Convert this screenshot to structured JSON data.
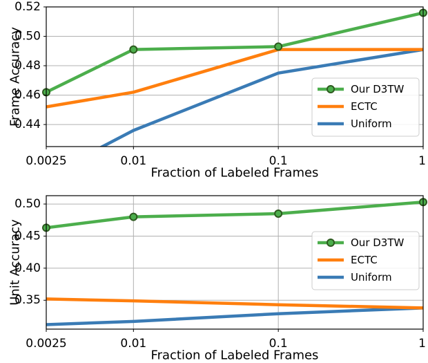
{
  "chart_data": [
    {
      "type": "line",
      "xlabel": "Fraction of Labeled Frames",
      "ylabel": "Frame Accuracy",
      "x_scale": "log",
      "x": [
        0.0025,
        0.01,
        0.1,
        1
      ],
      "x_tick_labels": [
        "0.0025",
        "0.01",
        "0.1",
        "1"
      ],
      "ylim": [
        0.425,
        0.52
      ],
      "y_ticks": [
        0.44,
        0.46,
        0.48,
        0.5,
        0.52
      ],
      "y_tick_labels": [
        "0.44",
        "0.46",
        "0.48",
        "0.50",
        "0.52"
      ],
      "grid": true,
      "legend_position": "lower-right",
      "series": [
        {
          "name": "Our D3TW",
          "values": [
            0.462,
            0.491,
            0.493,
            0.516
          ],
          "color": "#4cae4c",
          "marker": "circle"
        },
        {
          "name": "ECTC",
          "values": [
            0.452,
            0.462,
            0.491,
            0.491
          ],
          "color": "#ff7f0e"
        },
        {
          "name": "Uniform",
          "values": [
            0.405,
            0.436,
            0.475,
            0.491
          ],
          "color": "#3a7bb5"
        }
      ]
    },
    {
      "type": "line",
      "xlabel": "Fraction of Labeled Frames",
      "ylabel": "Unit Accuracy",
      "x_scale": "log",
      "x": [
        0.0025,
        0.01,
        0.1,
        1
      ],
      "x_tick_labels": [
        "0.0025",
        "0.01",
        "0.1",
        "1"
      ],
      "ylim": [
        0.305,
        0.513
      ],
      "y_ticks": [
        0.35,
        0.4,
        0.45,
        0.5
      ],
      "y_tick_labels": [
        "0.35",
        "0.40",
        "0.45",
        "0.50"
      ],
      "grid": true,
      "legend_position": "center-right",
      "series": [
        {
          "name": "Our D3TW",
          "values": [
            0.463,
            0.48,
            0.485,
            0.503
          ],
          "color": "#4cae4c",
          "marker": "circle"
        },
        {
          "name": "ECTC",
          "values": [
            0.352,
            0.349,
            0.343,
            0.338
          ],
          "color": "#ff7f0e"
        },
        {
          "name": "Uniform",
          "values": [
            0.312,
            0.317,
            0.329,
            0.338
          ],
          "color": "#3a7bb5"
        }
      ]
    }
  ]
}
